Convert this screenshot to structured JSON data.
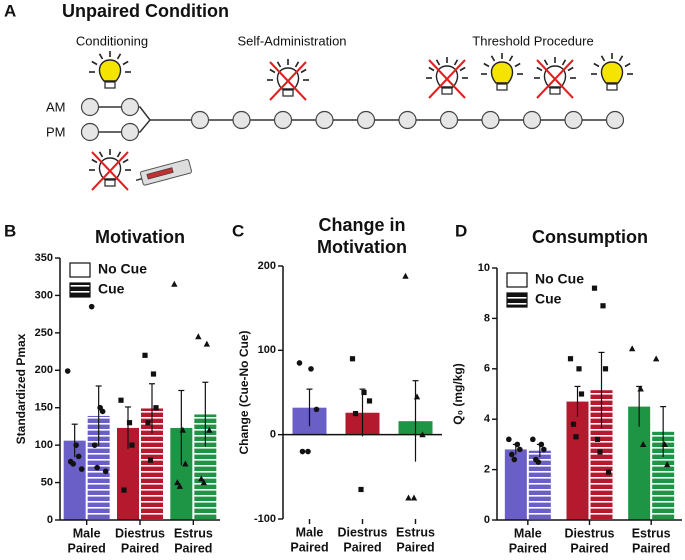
{
  "diagram": {
    "panel_letter": "A",
    "title": "Unpaired Condition",
    "phases": [
      "Conditioning",
      "Self-Administration",
      "Threshold Procedure"
    ],
    "rows": [
      "AM",
      "PM"
    ]
  },
  "chart_data": [
    {
      "type": "bar",
      "panel_letter": "B",
      "title": [
        "Motivation"
      ],
      "ylabel": "Standardized Pmax",
      "categories": [
        [
          "Male",
          "Paired"
        ],
        [
          "Diestrus",
          "Paired"
        ],
        [
          "Estrus",
          "Paired"
        ]
      ],
      "category_colors": [
        "#6a5fc6",
        "#b5192e",
        "#1e9545"
      ],
      "category_markers": [
        "circle",
        "square",
        "triangle"
      ],
      "series": [
        {
          "name": "No Cue",
          "pattern": "solid",
          "values": [
            106,
            123,
            123
          ],
          "errors": [
            22,
            28,
            50
          ],
          "points": [
            [
              199,
              100,
              85,
              78,
              75,
              68
            ],
            [
              160,
              130,
              100,
              40
            ],
            [
              315,
              120,
              75,
              50,
              45
            ]
          ]
        },
        {
          "name": "Cue",
          "pattern": "striped",
          "values": [
            139,
            149,
            141
          ],
          "errors": [
            40,
            33,
            43
          ],
          "points": [
            [
              285,
              150,
              145,
              100,
              70,
              65
            ],
            [
              220,
              195,
              150,
              130,
              80
            ],
            [
              245,
              235,
              120,
              55,
              50
            ]
          ]
        }
      ],
      "ylim": [
        0,
        350
      ],
      "yticks": [
        0,
        50,
        100,
        150,
        200,
        250,
        300,
        350
      ],
      "legend": "top-left"
    },
    {
      "type": "bar",
      "panel_letter": "C",
      "title": [
        "Change in",
        "Motivation"
      ],
      "ylabel": "Change (Cue-No Cue)",
      "categories": [
        [
          "Male",
          "Paired"
        ],
        [
          "Diestrus",
          "Paired"
        ],
        [
          "Estrus",
          "Paired"
        ]
      ],
      "category_colors": [
        "#6a5fc6",
        "#b5192e",
        "#1e9545"
      ],
      "category_markers": [
        "circle",
        "square",
        "triangle"
      ],
      "series": [
        {
          "pattern": "solid",
          "values": [
            32,
            26,
            16
          ],
          "errors": [
            22,
            28,
            48
          ],
          "points": [
            [
              85,
              78,
              30,
              -20,
              -20
            ],
            [
              90,
              50,
              40,
              25,
              -65
            ],
            [
              188,
              45,
              0,
              -75,
              -75
            ]
          ]
        }
      ],
      "ylim": [
        -100,
        200
      ],
      "yticks": [
        -100,
        0,
        100,
        200
      ]
    },
    {
      "type": "bar",
      "panel_letter": "D",
      "title": [
        "Consumption"
      ],
      "ylabel": "Q₀ (mg/kg)",
      "categories": [
        [
          "Male",
          "Paired"
        ],
        [
          "Diestrus",
          "Paired"
        ],
        [
          "Estrus",
          "Paired"
        ]
      ],
      "category_colors": [
        "#6a5fc6",
        "#b5192e",
        "#1e9545"
      ],
      "category_markers": [
        "circle",
        "square",
        "triangle"
      ],
      "series": [
        {
          "name": "No Cue",
          "pattern": "solid",
          "values": [
            2.8,
            4.7,
            4.5
          ],
          "errors": [
            0.2,
            0.6,
            0.8
          ],
          "points": [
            [
              3.2,
              3.0,
              2.8,
              2.6,
              2.4
            ],
            [
              6.4,
              6.0,
              5.0,
              3.8,
              3.3
            ],
            [
              6.8,
              5.2,
              3.0
            ]
          ]
        },
        {
          "name": "Cue",
          "pattern": "striped",
          "values": [
            2.75,
            5.15,
            3.5
          ],
          "errors": [
            0.25,
            1.5,
            1.0
          ],
          "points": [
            [
              3.2,
              3.0,
              2.8,
              2.4,
              2.3
            ],
            [
              9.2,
              8.5,
              6.0,
              3.2,
              2.7,
              1.9
            ],
            [
              6.4,
              3.0,
              2.2
            ]
          ]
        }
      ],
      "ylim": [
        0,
        10
      ],
      "yticks": [
        0,
        2,
        4,
        6,
        8,
        10
      ],
      "legend": "top-left"
    }
  ]
}
